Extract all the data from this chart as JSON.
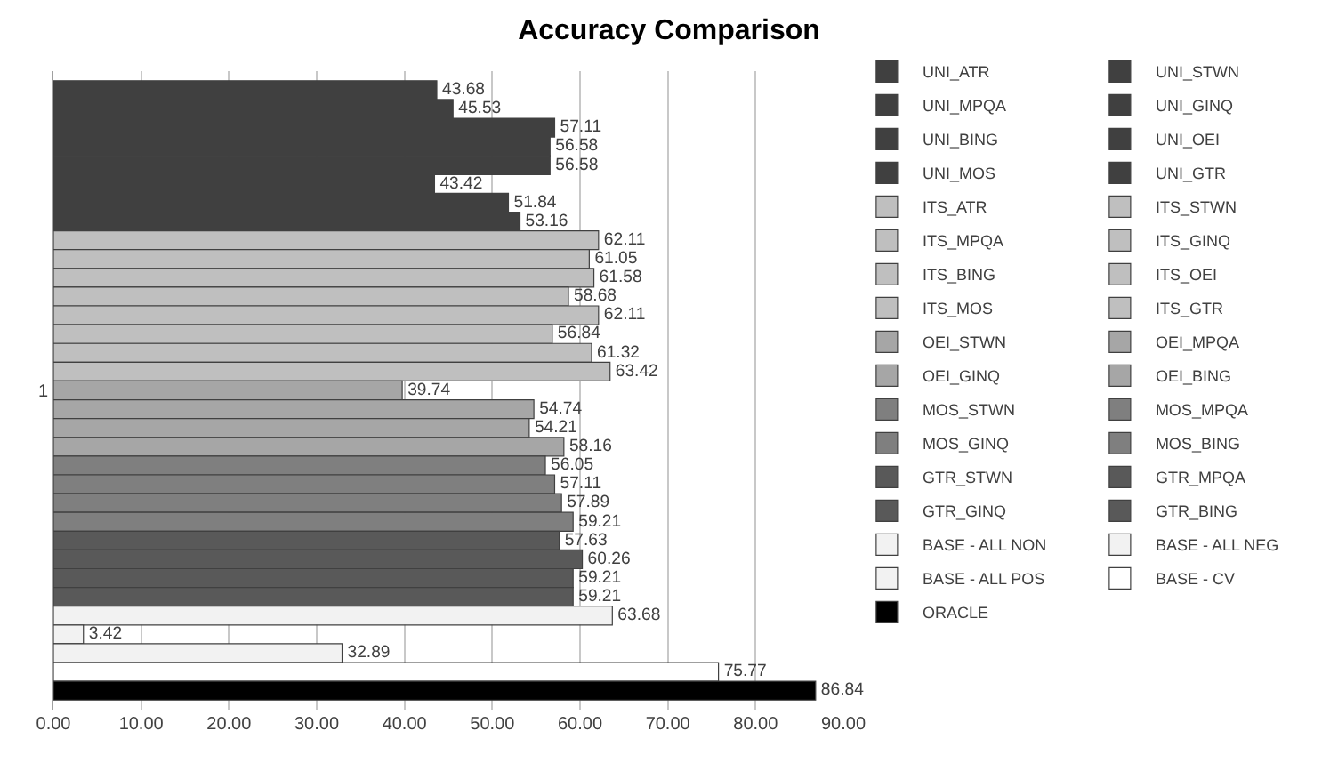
{
  "chart_data": {
    "type": "bar",
    "orientation": "horizontal",
    "title": "Accuracy Comparison",
    "categories": [
      "1"
    ],
    "series": [
      {
        "name": "UNI_ATR",
        "color": "#404040",
        "values": [
          43.68
        ]
      },
      {
        "name": "UNI_STWN",
        "color": "#404040",
        "values": [
          45.53
        ]
      },
      {
        "name": "UNI_MPQA",
        "color": "#404040",
        "values": [
          57.11
        ]
      },
      {
        "name": "UNI_GINQ",
        "color": "#404040",
        "values": [
          56.58
        ]
      },
      {
        "name": "UNI_BING",
        "color": "#404040",
        "values": [
          56.58
        ]
      },
      {
        "name": "UNI_OEI",
        "color": "#404040",
        "values": [
          43.42
        ]
      },
      {
        "name": "UNI_MOS",
        "color": "#404040",
        "values": [
          51.84
        ]
      },
      {
        "name": "UNI_GTR",
        "color": "#404040",
        "values": [
          53.16
        ]
      },
      {
        "name": "ITS_ATR",
        "color": "#bfbfbf",
        "values": [
          62.11
        ]
      },
      {
        "name": "ITS_STWN",
        "color": "#bfbfbf",
        "values": [
          61.05
        ]
      },
      {
        "name": "ITS_MPQA",
        "color": "#bfbfbf",
        "values": [
          61.58
        ]
      },
      {
        "name": "ITS_GINQ",
        "color": "#bfbfbf",
        "values": [
          58.68
        ]
      },
      {
        "name": "ITS_BING",
        "color": "#bfbfbf",
        "values": [
          62.11
        ]
      },
      {
        "name": "ITS_OEI",
        "color": "#bfbfbf",
        "values": [
          56.84
        ]
      },
      {
        "name": "ITS_MOS",
        "color": "#bfbfbf",
        "values": [
          61.32
        ]
      },
      {
        "name": "ITS_GTR",
        "color": "#bfbfbf",
        "values": [
          63.42
        ]
      },
      {
        "name": "OEI_STWN",
        "color": "#a6a6a6",
        "values": [
          39.74
        ]
      },
      {
        "name": "OEI_MPQA",
        "color": "#a6a6a6",
        "values": [
          54.74
        ]
      },
      {
        "name": "OEI_GINQ",
        "color": "#a6a6a6",
        "values": [
          54.21
        ]
      },
      {
        "name": "OEI_BING",
        "color": "#a6a6a6",
        "values": [
          58.16
        ]
      },
      {
        "name": "MOS_STWN",
        "color": "#7f7f7f",
        "values": [
          56.05
        ]
      },
      {
        "name": "MOS_MPQA",
        "color": "#7f7f7f",
        "values": [
          57.11
        ]
      },
      {
        "name": "MOS_GINQ",
        "color": "#7f7f7f",
        "values": [
          57.89
        ]
      },
      {
        "name": "MOS_BING",
        "color": "#7f7f7f",
        "values": [
          59.21
        ]
      },
      {
        "name": "GTR_STWN",
        "color": "#595959",
        "values": [
          57.63
        ]
      },
      {
        "name": "GTR_MPQA",
        "color": "#595959",
        "values": [
          60.26
        ]
      },
      {
        "name": "GTR_GINQ",
        "color": "#595959",
        "values": [
          59.21
        ]
      },
      {
        "name": "GTR_BING",
        "color": "#595959",
        "values": [
          59.21
        ]
      },
      {
        "name": "BASE - ALL NON",
        "color": "#f2f2f2",
        "values": [
          63.68
        ]
      },
      {
        "name": "BASE - ALL NEG",
        "color": "#f2f2f2",
        "values": [
          3.42
        ]
      },
      {
        "name": "BASE - ALL POS",
        "color": "#f2f2f2",
        "values": [
          32.89
        ]
      },
      {
        "name": "BASE - CV",
        "color": "#ffffff",
        "values": [
          75.77
        ]
      },
      {
        "name": "ORACLE",
        "color": "#000000",
        "values": [
          86.84
        ]
      }
    ],
    "xlim": [
      0,
      90
    ],
    "xticks": [
      {
        "value": 0,
        "label": "0.00"
      },
      {
        "value": 10,
        "label": "10.00"
      },
      {
        "value": 20,
        "label": "20.00"
      },
      {
        "value": 30,
        "label": "30.00"
      },
      {
        "value": 40,
        "label": "40.00"
      },
      {
        "value": 50,
        "label": "50.00"
      },
      {
        "value": 60,
        "label": "60.00"
      },
      {
        "value": 70,
        "label": "70.00"
      },
      {
        "value": 80,
        "label": "80.00"
      },
      {
        "value": 90,
        "label": "90.00"
      }
    ],
    "grid": "x",
    "legend": "right",
    "data_labels": true
  }
}
